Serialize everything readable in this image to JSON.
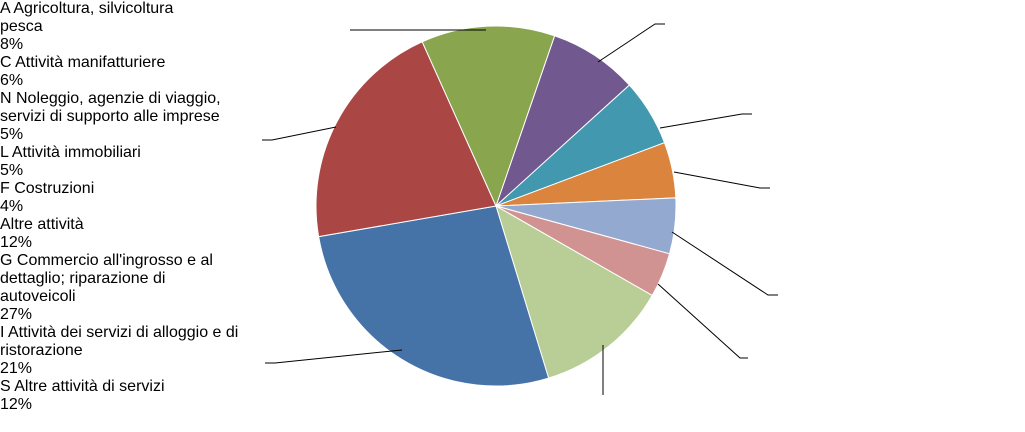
{
  "chart_data": {
    "type": "pie",
    "categories": [
      "A Agricoltura, silvicoltura pesca",
      "C Attività manifatturiere",
      "N Noleggio, agenzie di viaggio, servizi di supporto alle imprese",
      "L Attività immobiliari",
      "F Costruzioni",
      "Altre attività",
      "G Commercio all'ingrosso e al dettaglio; riparazione di autoveicoli",
      "I Attività dei servizi di alloggio e di ristorazione",
      "S Altre attività di servizi"
    ],
    "values": [
      8,
      6,
      5,
      5,
      4,
      12,
      27,
      21,
      12
    ],
    "value_labels": [
      "8%",
      "6%",
      "5%",
      "5%",
      "4%",
      "12%",
      "27%",
      "21%",
      "12%"
    ],
    "colors": [
      "#71588f",
      "#4198af",
      "#db843d",
      "#93a9cf",
      "#d19392",
      "#b9cd96",
      "#4572a7",
      "#aa4643",
      "#89a54e"
    ]
  }
}
